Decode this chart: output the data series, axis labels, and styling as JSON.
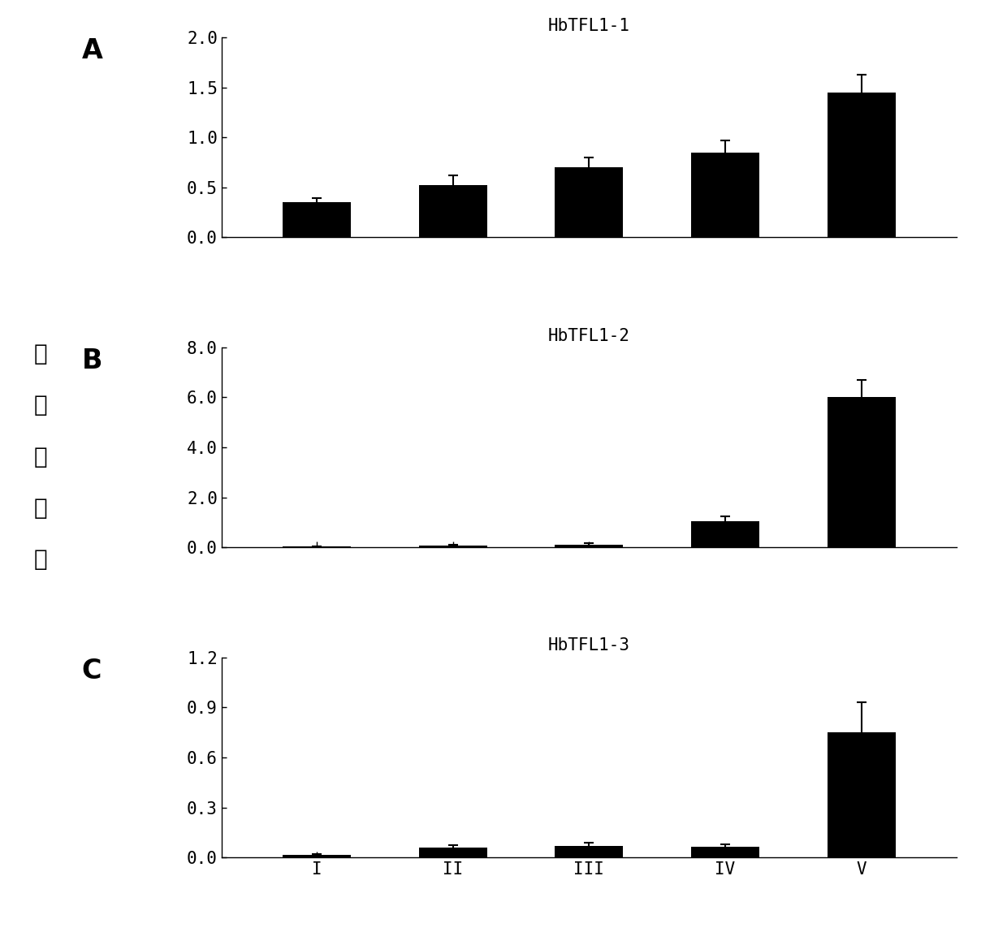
{
  "panels": [
    {
      "label": "A",
      "title": "HbTFL1-1",
      "categories": [
        "I",
        "II",
        "III",
        "IV",
        "V"
      ],
      "values": [
        0.35,
        0.52,
        0.7,
        0.85,
        1.45
      ],
      "errors": [
        0.04,
        0.1,
        0.1,
        0.12,
        0.18
      ],
      "ylim": [
        0.0,
        2.0
      ],
      "yticks": [
        0.0,
        0.5,
        1.0,
        1.5,
        2.0
      ],
      "ytick_labels": [
        "0.0",
        "0.5",
        "1.0",
        "1.5",
        "2.0"
      ]
    },
    {
      "label": "B",
      "title": "HbTFL1-2",
      "categories": [
        "I",
        "II",
        "III",
        "IV",
        "V"
      ],
      "values": [
        0.04,
        0.08,
        0.1,
        1.05,
        6.0
      ],
      "errors": [
        0.01,
        0.04,
        0.08,
        0.18,
        0.7
      ],
      "ylim": [
        0.0,
        8.0
      ],
      "yticks": [
        0.0,
        2.0,
        4.0,
        6.0,
        8.0
      ],
      "ytick_labels": [
        "0.0",
        "2.0",
        "4.0",
        "6.0",
        "8.0"
      ]
    },
    {
      "label": "C",
      "title": "HbTFL1-3",
      "categories": [
        "I",
        "II",
        "III",
        "IV",
        "V"
      ],
      "values": [
        0.015,
        0.06,
        0.07,
        0.065,
        0.75
      ],
      "errors": [
        0.005,
        0.015,
        0.02,
        0.015,
        0.18
      ],
      "ylim": [
        0.0,
        1.2
      ],
      "yticks": [
        0.0,
        0.3,
        0.6,
        0.9,
        1.2
      ],
      "ytick_labels": [
        "0.0",
        "0.3",
        "0.6",
        "0.9",
        "1.2"
      ]
    }
  ],
  "bar_color": "#000000",
  "bar_width": 0.5,
  "ylabel_chars": [
    "相",
    "对",
    "表",
    "达",
    "量"
  ],
  "xlabel_categories": [
    "I",
    "II",
    "III",
    "IV",
    "V"
  ],
  "background_color": "#ffffff",
  "title_fontsize": 15,
  "panel_label_fontsize": 24,
  "tick_fontsize": 15,
  "ylabel_fontsize": 20,
  "capsize": 4
}
